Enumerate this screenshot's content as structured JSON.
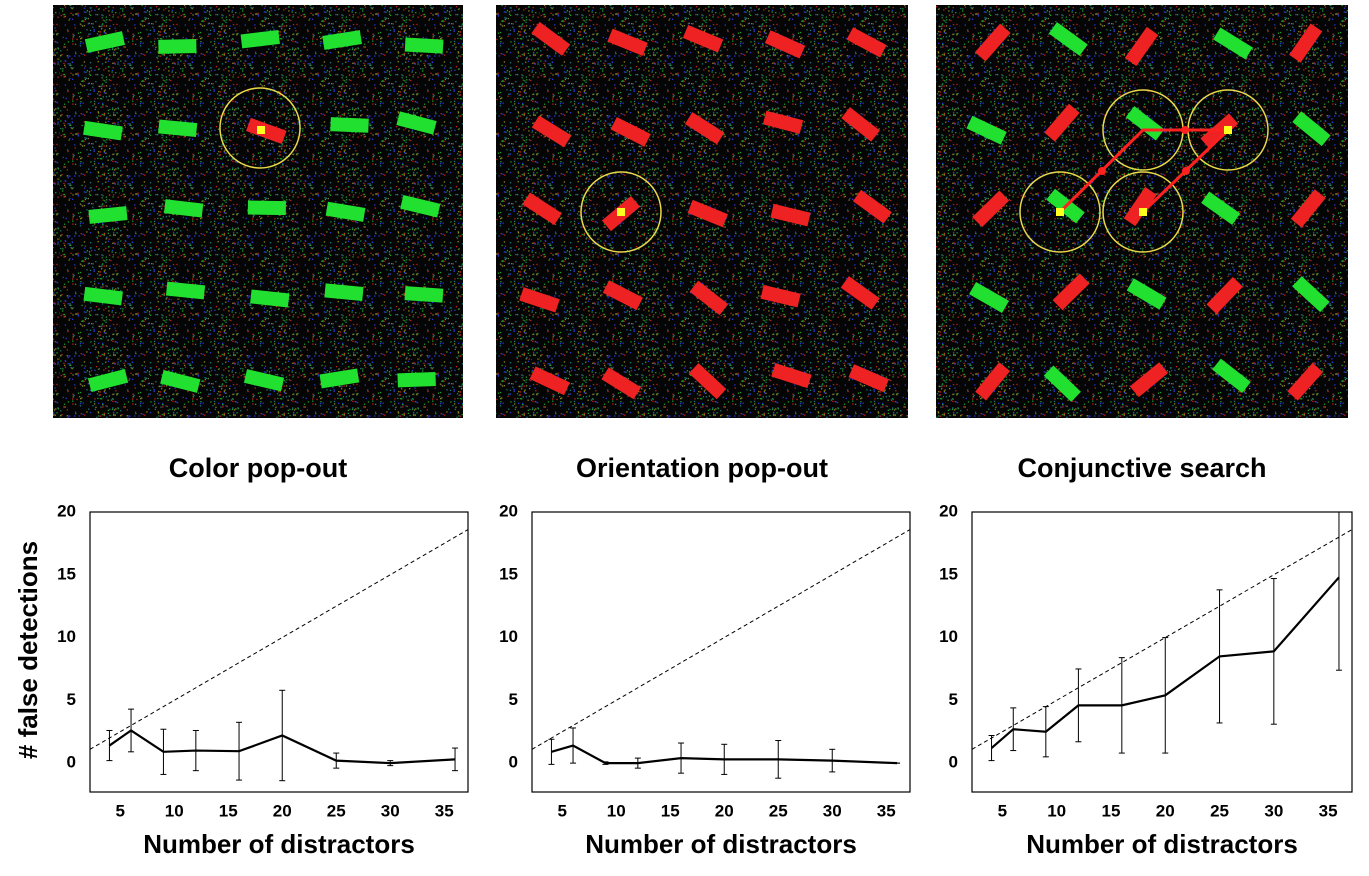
{
  "chart_data": [
    {
      "type": "line",
      "title": "Color pop-out",
      "ylabel": "# false detections",
      "xlabel": "Number of distractors",
      "x": [
        4,
        6,
        9,
        12,
        16,
        20,
        25,
        30,
        36
      ],
      "values": [
        1.4,
        2.6,
        0.9,
        1.0,
        0.95,
        2.2,
        0.2,
        0.0,
        0.3
      ],
      "errors": [
        1.2,
        1.7,
        1.8,
        1.6,
        2.3,
        3.6,
        0.6,
        0.2,
        0.9
      ],
      "color": "#000000",
      "xlim": [
        2.2,
        37.2
      ],
      "ylim": [
        -2.3,
        20
      ],
      "xticks": [
        5,
        10,
        15,
        20,
        25,
        30,
        35
      ],
      "yticks": [
        0,
        5,
        10,
        15,
        20
      ],
      "reference_line": {
        "x": [
          2.2,
          37.2
        ],
        "y": [
          1.1,
          18.6
        ]
      }
    },
    {
      "type": "line",
      "title": "Orientation pop-out",
      "xlabel": "Number of distractors",
      "x": [
        4,
        6,
        9,
        12,
        16,
        20,
        25,
        30,
        36
      ],
      "values": [
        0.9,
        1.4,
        0.0,
        0.0,
        0.4,
        0.3,
        0.3,
        0.2,
        0.0
      ],
      "errors": [
        1.0,
        1.4,
        0.1,
        0.4,
        1.2,
        1.2,
        1.5,
        0.9,
        0.0
      ],
      "color": "#000000",
      "xlim": [
        2.2,
        37.2
      ],
      "ylim": [
        -2.3,
        20
      ],
      "xticks": [
        5,
        10,
        15,
        20,
        25,
        30,
        35
      ],
      "yticks": [
        0,
        5,
        10,
        15,
        20
      ],
      "reference_line": {
        "x": [
          2.2,
          37.2
        ],
        "y": [
          1.1,
          18.6
        ]
      }
    },
    {
      "type": "line",
      "title": "Conjunctive search",
      "xlabel": "Number of distractors",
      "x": [
        4,
        6,
        9,
        12,
        16,
        20,
        25,
        30,
        36
      ],
      "values": [
        1.2,
        2.7,
        2.5,
        4.6,
        4.6,
        5.4,
        8.5,
        8.9,
        14.8
      ],
      "errors": [
        1.0,
        1.7,
        2.0,
        2.9,
        3.8,
        4.6,
        5.3,
        5.8,
        7.4
      ],
      "color": "#000000",
      "xlim": [
        2.2,
        37.2
      ],
      "ylim": [
        -2.3,
        20
      ],
      "xticks": [
        5,
        10,
        15,
        20,
        25,
        30,
        35
      ],
      "yticks": [
        0,
        5,
        10,
        15,
        20
      ],
      "reference_line": {
        "x": [
          2.2,
          37.2
        ],
        "y": [
          1.1,
          18.6
        ]
      }
    }
  ]
}
